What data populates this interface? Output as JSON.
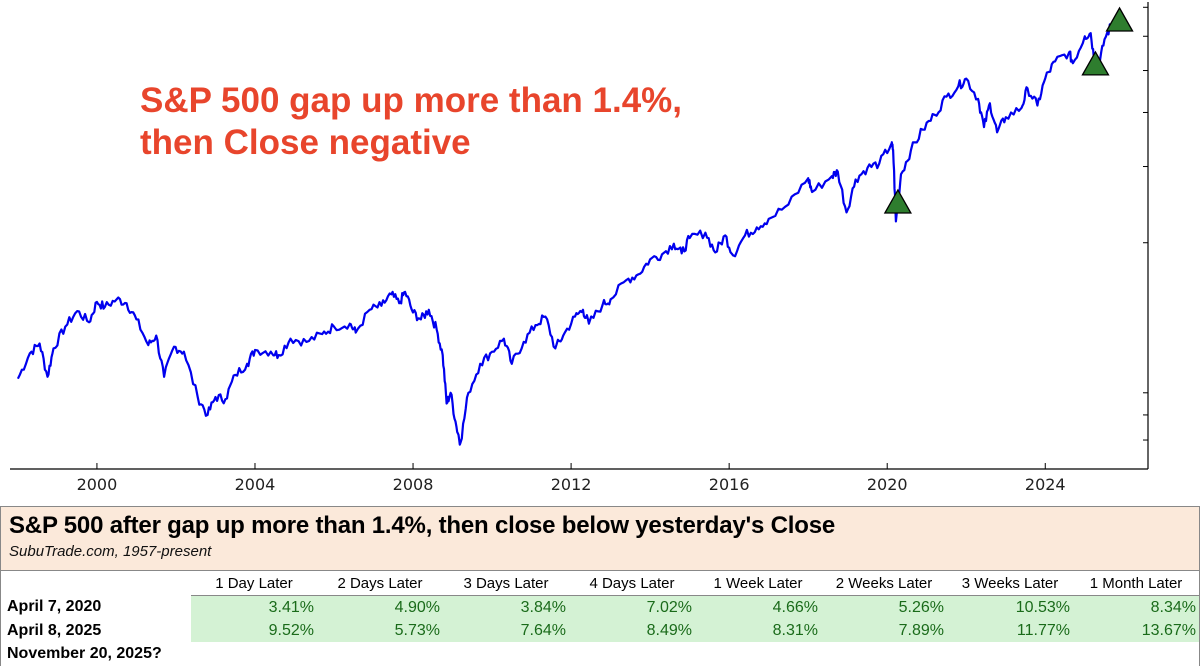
{
  "chart_data": {
    "type": "line",
    "title": "S&P 500 gap up more than 1.4%, then Close negative",
    "annotation_lines": [
      "S&P 500 gap up more than 1.4%,",
      "then Close negative"
    ],
    "xlabel": "",
    "ylabel": "",
    "y_scale": "log",
    "xlim": [
      1997.8,
      2026.6
    ],
    "ylim": [
      600,
      7200
    ],
    "x_ticks": [
      2000,
      2004,
      2008,
      2012,
      2016,
      2020,
      2024
    ],
    "x_tick_labels": [
      "2000",
      "2004",
      "2008",
      "2012",
      "2016",
      "2020",
      "2024"
    ],
    "series": [
      {
        "name": "S&P 500",
        "color": "#0000ee",
        "points": [
          [
            1998.0,
            970
          ],
          [
            1998.3,
            1110
          ],
          [
            1998.55,
            1170
          ],
          [
            1998.75,
            980
          ],
          [
            1998.9,
            1140
          ],
          [
            1999.2,
            1280
          ],
          [
            1999.5,
            1390
          ],
          [
            1999.8,
            1310
          ],
          [
            2000.0,
            1460
          ],
          [
            2000.2,
            1420
          ],
          [
            2000.5,
            1480
          ],
          [
            2000.75,
            1450
          ],
          [
            2001.0,
            1330
          ],
          [
            2001.3,
            1160
          ],
          [
            2001.5,
            1220
          ],
          [
            2001.7,
            980
          ],
          [
            2001.95,
            1150
          ],
          [
            2002.2,
            1120
          ],
          [
            2002.55,
            880
          ],
          [
            2002.8,
            800
          ],
          [
            2003.0,
            880
          ],
          [
            2003.25,
            870
          ],
          [
            2003.5,
            990
          ],
          [
            2003.8,
            1050
          ],
          [
            2004.0,
            1130
          ],
          [
            2004.4,
            1120
          ],
          [
            2004.6,
            1100
          ],
          [
            2004.9,
            1200
          ],
          [
            2005.3,
            1180
          ],
          [
            2005.7,
            1230
          ],
          [
            2006.0,
            1280
          ],
          [
            2006.4,
            1300
          ],
          [
            2006.55,
            1240
          ],
          [
            2006.9,
            1400
          ],
          [
            2007.2,
            1430
          ],
          [
            2007.45,
            1520
          ],
          [
            2007.65,
            1450
          ],
          [
            2007.8,
            1540
          ],
          [
            2008.0,
            1380
          ],
          [
            2008.2,
            1330
          ],
          [
            2008.4,
            1400
          ],
          [
            2008.6,
            1260
          ],
          [
            2008.75,
            1100
          ],
          [
            2008.85,
            850
          ],
          [
            2008.95,
            900
          ],
          [
            2009.1,
            750
          ],
          [
            2009.2,
            690
          ],
          [
            2009.4,
            900
          ],
          [
            2009.7,
            1050
          ],
          [
            2010.0,
            1120
          ],
          [
            2010.3,
            1200
          ],
          [
            2010.5,
            1050
          ],
          [
            2010.8,
            1180
          ],
          [
            2011.1,
            1290
          ],
          [
            2011.35,
            1350
          ],
          [
            2011.6,
            1140
          ],
          [
            2011.8,
            1220
          ],
          [
            2012.1,
            1350
          ],
          [
            2012.3,
            1400
          ],
          [
            2012.45,
            1300
          ],
          [
            2012.8,
            1440
          ],
          [
            2013.0,
            1480
          ],
          [
            2013.4,
            1640
          ],
          [
            2013.7,
            1690
          ],
          [
            2014.0,
            1830
          ],
          [
            2014.3,
            1880
          ],
          [
            2014.6,
            1990
          ],
          [
            2014.8,
            1890
          ],
          [
            2015.0,
            2050
          ],
          [
            2015.4,
            2110
          ],
          [
            2015.65,
            1900
          ],
          [
            2015.9,
            2080
          ],
          [
            2016.1,
            1870
          ],
          [
            2016.4,
            2080
          ],
          [
            2016.7,
            2170
          ],
          [
            2017.0,
            2270
          ],
          [
            2017.5,
            2450
          ],
          [
            2018.0,
            2820
          ],
          [
            2018.1,
            2620
          ],
          [
            2018.6,
            2850
          ],
          [
            2018.75,
            2920
          ],
          [
            2018.97,
            2350
          ],
          [
            2019.2,
            2800
          ],
          [
            2019.5,
            2980
          ],
          [
            2019.8,
            3050
          ],
          [
            2020.1,
            3380
          ],
          [
            2020.15,
            3280
          ],
          [
            2020.22,
            2240
          ],
          [
            2020.35,
            2880
          ],
          [
            2020.6,
            3270
          ],
          [
            2020.9,
            3650
          ],
          [
            2021.2,
            3950
          ],
          [
            2021.5,
            4350
          ],
          [
            2021.8,
            4600
          ],
          [
            2022.0,
            4790
          ],
          [
            2022.3,
            4300
          ],
          [
            2022.45,
            3700
          ],
          [
            2022.6,
            4200
          ],
          [
            2022.78,
            3600
          ],
          [
            2023.0,
            3900
          ],
          [
            2023.4,
            4100
          ],
          [
            2023.55,
            4550
          ],
          [
            2023.8,
            4150
          ],
          [
            2024.0,
            4800
          ],
          [
            2024.25,
            5250
          ],
          [
            2024.6,
            5500
          ],
          [
            2024.7,
            5200
          ],
          [
            2025.0,
            6000
          ],
          [
            2025.15,
            6100
          ],
          [
            2025.27,
            5060
          ],
          [
            2025.33,
            4980
          ],
          [
            2025.5,
            5900
          ],
          [
            2025.7,
            6450
          ],
          [
            2025.88,
            6880
          ]
        ]
      }
    ],
    "markers": [
      {
        "shape": "triangle-up",
        "x": 2020.27,
        "y": 2460,
        "color": "#2e7d2e"
      },
      {
        "shape": "triangle-up",
        "x": 2025.27,
        "y": 5130,
        "color": "#2e7d2e"
      },
      {
        "shape": "triangle-up",
        "x": 2025.88,
        "y": 6480,
        "color": "#2e7d2e"
      }
    ]
  },
  "table": {
    "title": "S&P 500 after gap up more than 1.4%, then close below yesterday's Close",
    "subtitle": "SubuTrade.com, 1957-present",
    "columns": [
      "1 Day Later",
      "2 Days Later",
      "3 Days Later",
      "4 Days Later",
      "1 Week Later",
      "2 Weeks Later",
      "3 Weeks Later",
      "1 Month Later"
    ],
    "rows": [
      {
        "label": "April 7, 2020",
        "values": [
          "3.41%",
          "4.90%",
          "3.84%",
          "7.02%",
          "4.66%",
          "5.26%",
          "10.53%",
          "8.34%"
        ]
      },
      {
        "label": "April 8, 2025",
        "values": [
          "9.52%",
          "5.73%",
          "7.64%",
          "8.49%",
          "8.31%",
          "7.89%",
          "11.77%",
          "13.67%"
        ]
      },
      {
        "label": "November 20, 2025?",
        "values": [
          "",
          "",
          "",
          "",
          "",
          "",
          "",
          ""
        ]
      }
    ]
  },
  "colors": {
    "line": "#0000ee",
    "marker": "#2e7d2e",
    "annotation": "#e8452c",
    "header_bg": "#fbe9da",
    "cell_bg": "#d4f2d4",
    "cell_text": "#1a6b1a"
  }
}
